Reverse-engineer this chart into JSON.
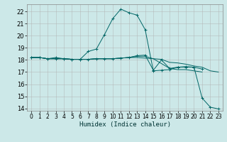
{
  "background_color": "#cce8e8",
  "grid_color": "#b0b0b0",
  "line_color": "#006666",
  "xlabel": "Humidex (Indice chaleur)",
  "xlim": [
    -0.5,
    23.5
  ],
  "ylim": [
    13.8,
    22.6
  ],
  "yticks": [
    14,
    15,
    16,
    17,
    18,
    19,
    20,
    21,
    22
  ],
  "xticks": [
    0,
    1,
    2,
    3,
    4,
    5,
    6,
    7,
    8,
    9,
    10,
    11,
    12,
    13,
    14,
    15,
    16,
    17,
    18,
    19,
    20,
    21,
    22,
    23
  ],
  "series": [
    {
      "x": [
        0,
        1,
        2,
        3,
        4,
        5,
        6,
        7,
        8,
        9,
        10,
        11,
        12,
        13,
        14,
        15,
        16,
        17,
        18,
        19,
        20,
        21,
        22,
        23
      ],
      "y": [
        18.2,
        18.2,
        18.1,
        18.2,
        18.1,
        18.05,
        18.05,
        18.7,
        18.9,
        20.1,
        21.4,
        22.2,
        21.9,
        21.7,
        20.5,
        17.1,
        17.15,
        17.2,
        17.4,
        17.4,
        17.4,
        17.25,
        null,
        null
      ],
      "marker": "+"
    },
    {
      "x": [
        0,
        1,
        2,
        3,
        4,
        5,
        6,
        7,
        8,
        9,
        10,
        11,
        12,
        13,
        14,
        15,
        16,
        17,
        18,
        19,
        20,
        21,
        22,
        23
      ],
      "y": [
        18.2,
        18.2,
        18.1,
        18.1,
        18.1,
        18.05,
        18.05,
        18.05,
        18.1,
        18.1,
        18.1,
        18.15,
        18.2,
        18.2,
        18.15,
        18.1,
        18.05,
        17.8,
        17.75,
        17.65,
        17.5,
        17.4,
        17.1,
        17.0
      ],
      "marker": null
    },
    {
      "x": [
        0,
        1,
        2,
        3,
        4,
        5,
        6,
        7,
        8,
        9,
        10,
        11,
        12,
        13,
        14,
        15,
        16,
        17,
        18,
        19,
        20,
        21,
        22,
        23
      ],
      "y": [
        18.2,
        18.2,
        18.1,
        18.1,
        18.1,
        18.05,
        18.05,
        18.05,
        18.1,
        18.1,
        18.1,
        18.15,
        18.2,
        18.3,
        18.3,
        18.1,
        17.7,
        17.3,
        17.2,
        17.2,
        17.1,
        17.0,
        null,
        null
      ],
      "marker": null
    },
    {
      "x": [
        0,
        1,
        2,
        3,
        4,
        5,
        6,
        7,
        8,
        9,
        10,
        11,
        12,
        13,
        14,
        15,
        16,
        17,
        18,
        19,
        20,
        21,
        22,
        23
      ],
      "y": [
        18.2,
        18.2,
        18.1,
        18.1,
        18.1,
        18.05,
        18.05,
        18.05,
        18.1,
        18.1,
        18.1,
        18.15,
        18.2,
        18.35,
        18.4,
        17.15,
        18.0,
        17.3,
        17.4,
        17.45,
        17.4,
        14.85,
        14.1,
        13.95
      ],
      "marker": "+"
    }
  ]
}
